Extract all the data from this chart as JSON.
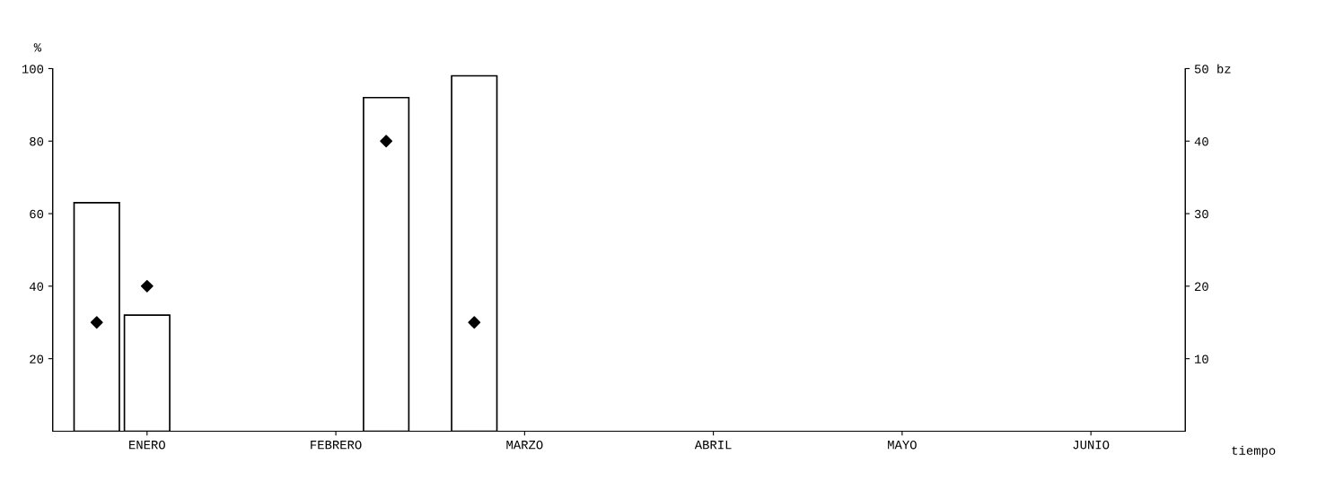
{
  "chart_data": {
    "type": "bar",
    "categories": [
      "ENERO",
      "FEBRERO",
      "MARZO",
      "ABRIL",
      "MAYO",
      "JUNIO"
    ],
    "series": [
      {
        "color": "#ffffff",
        "values": [
          63,
          null,
          98,
          null,
          null,
          null
        ]
      },
      {
        "color": "#ffffff",
        "values": [
          32,
          null,
          null,
          null,
          null,
          null
        ]
      },
      {
        "color": "#ffffff",
        "values": [
          null,
          92,
          null,
          null,
          null,
          null
        ]
      },
      {
        "type": "scatter",
        "axis": "y2",
        "color": "#000000",
        "marker": "diamond",
        "values": [
          15,
          null,
          15,
          null,
          null,
          null
        ]
      },
      {
        "type": "scatter",
        "axis": "y2",
        "color": "#000000",
        "marker": "diamond",
        "values": [
          20,
          null,
          null,
          null,
          null,
          null
        ]
      },
      {
        "type": "scatter",
        "axis": "y2",
        "color": "#000000",
        "marker": "diamond",
        "values": [
          null,
          40,
          null,
          null,
          null,
          null
        ]
      }
    ],
    "ylabel": "%",
    "xlabel": "tiempo",
    "ylim": [
      0,
      100
    ],
    "yticks": [
      20,
      40,
      60,
      80,
      100
    ],
    "y2lim": [
      0,
      50
    ],
    "y2ticks": [
      10,
      20,
      30,
      40,
      {
        "value": 50,
        "label": "50 bz"
      }
    ],
    "grid": false
  }
}
